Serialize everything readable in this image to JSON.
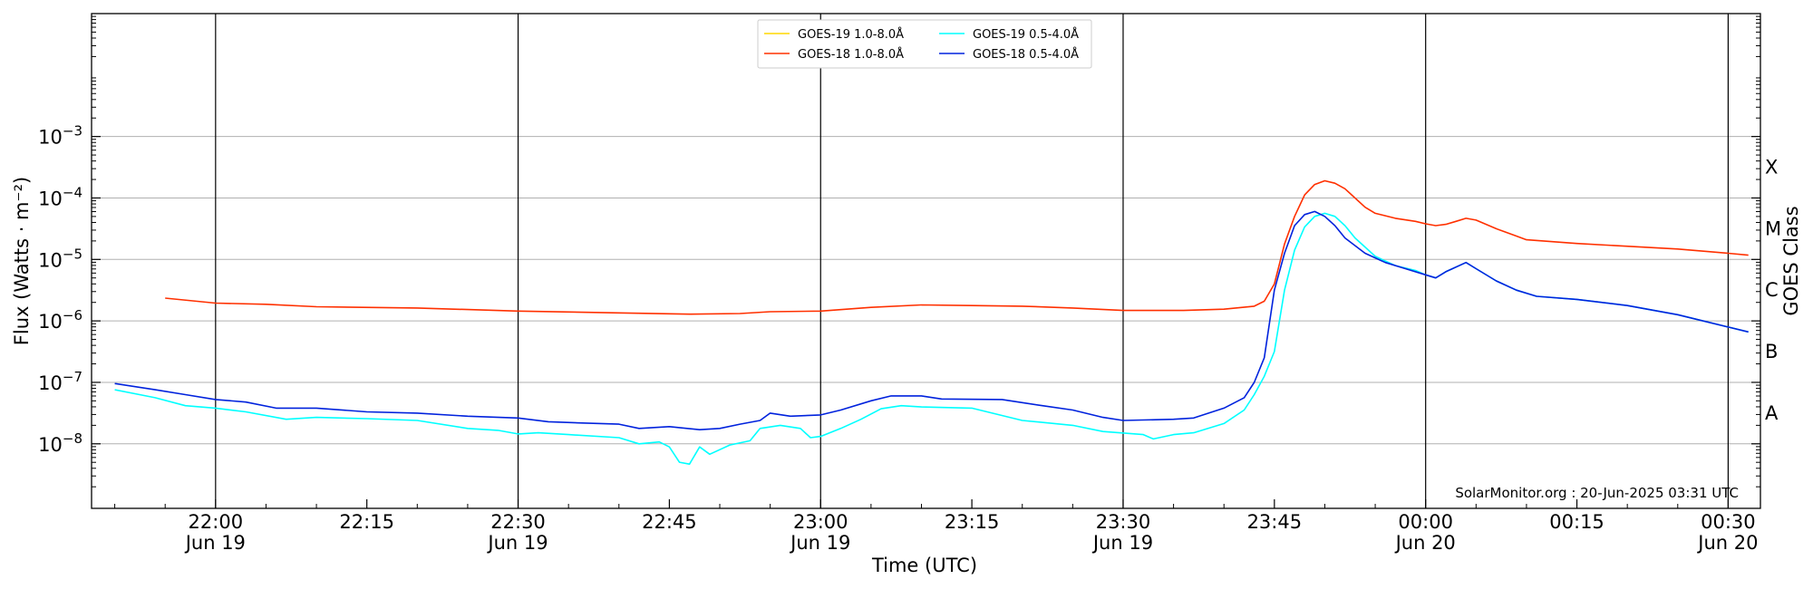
{
  "chart_data": {
    "type": "line",
    "xlabel": "Time (UTC)",
    "ylabel": "Flux (Watts · m⁻²)",
    "ylabel_right": "GOES Class",
    "ylim_log10": [
      -9.0,
      -1.0
    ],
    "y_scale": "log",
    "grid": "horizontal at each decade",
    "x_range_minutes": [
      -12,
      31
    ],
    "x_ticks": [
      {
        "minute": 0,
        "time": "22:00",
        "date": "Jun 19",
        "vline": true
      },
      {
        "minute": 15,
        "time": "22:15",
        "date": "",
        "vline": false
      },
      {
        "minute": 30,
        "time": "22:30",
        "date": "Jun 19",
        "vline": true
      },
      {
        "minute": 45,
        "time": "22:45",
        "date": "",
        "vline": false
      },
      {
        "minute": 60,
        "time": "23:00",
        "date": "Jun 19",
        "vline": true
      },
      {
        "minute": 75,
        "time": "23:15",
        "date": "",
        "vline": false
      },
      {
        "minute": 90,
        "time": "23:30",
        "date": "Jun 19",
        "vline": true
      },
      {
        "minute": 105,
        "time": "23:45",
        "date": "",
        "vline": false
      },
      {
        "minute": 120,
        "time": "00:00",
        "date": "Jun 20",
        "vline": true
      },
      {
        "minute": 135,
        "time": "00:15",
        "date": "",
        "vline": false
      },
      {
        "minute": 150,
        "time": "00:30",
        "date": "Jun 20",
        "vline": true
      }
    ],
    "y_ticks": [
      {
        "exp": -8,
        "base": "10",
        "sup": "−8"
      },
      {
        "exp": -7,
        "base": "10",
        "sup": "−7"
      },
      {
        "exp": -6,
        "base": "10",
        "sup": "−6"
      },
      {
        "exp": -5,
        "base": "10",
        "sup": "−5"
      },
      {
        "exp": -4,
        "base": "10",
        "sup": "−4"
      },
      {
        "exp": -3,
        "base": "10",
        "sup": "−3"
      }
    ],
    "class_labels": [
      {
        "label": "A",
        "exp": -7.5
      },
      {
        "label": "B",
        "exp": -6.5
      },
      {
        "label": "C",
        "exp": -5.5
      },
      {
        "label": "M",
        "exp": -4.5
      },
      {
        "label": "X",
        "exp": -3.5
      }
    ],
    "series": [
      {
        "name": "GOES-19 1.0-8.0Å",
        "color": "#ffd700",
        "points": []
      },
      {
        "name": "GOES-18 1.0-8.0Å",
        "color": "#ff3000",
        "points": [
          [
            -13,
            -5.56
          ],
          [
            -5,
            -5.63
          ],
          [
            0,
            -5.71
          ],
          [
            5,
            -5.73
          ],
          [
            10,
            -5.77
          ],
          [
            20,
            -5.79
          ],
          [
            30,
            -5.84
          ],
          [
            40,
            -5.87
          ],
          [
            47,
            -5.89
          ],
          [
            52,
            -5.88
          ],
          [
            55,
            -5.85
          ],
          [
            60,
            -5.84
          ],
          [
            65,
            -5.78
          ],
          [
            70,
            -5.74
          ],
          [
            75,
            -5.75
          ],
          [
            80,
            -5.76
          ],
          [
            85,
            -5.79
          ],
          [
            90,
            -5.83
          ],
          [
            96,
            -5.83
          ],
          [
            100,
            -5.81
          ],
          [
            103,
            -5.76
          ],
          [
            104,
            -5.68
          ],
          [
            105,
            -5.4
          ],
          [
            106,
            -4.75
          ],
          [
            107,
            -4.3
          ],
          [
            108,
            -3.95
          ],
          [
            109,
            -3.78
          ],
          [
            110,
            -3.72
          ],
          [
            111,
            -3.76
          ],
          [
            112,
            -3.85
          ],
          [
            113,
            -4.0
          ],
          [
            114,
            -4.15
          ],
          [
            115,
            -4.25
          ],
          [
            117,
            -4.33
          ],
          [
            119,
            -4.38
          ],
          [
            120,
            -4.42
          ],
          [
            121,
            -4.45
          ],
          [
            122,
            -4.43
          ],
          [
            123,
            -4.38
          ],
          [
            124,
            -4.33
          ],
          [
            125,
            -4.36
          ],
          [
            127,
            -4.5
          ],
          [
            129,
            -4.62
          ],
          [
            130,
            -4.68
          ],
          [
            135,
            -4.74
          ],
          [
            145,
            -4.83
          ],
          [
            150,
            -4.9
          ],
          [
            152,
            -4.93
          ]
        ]
      },
      {
        "name": "GOES-19 0.5-4.0Å",
        "color": "#00ffff",
        "points": [
          [
            -13,
            -7.03
          ],
          [
            -10,
            -7.12
          ],
          [
            -6,
            -7.25
          ],
          [
            -3,
            -7.38
          ],
          [
            0,
            -7.42
          ],
          [
            3,
            -7.48
          ],
          [
            7,
            -7.6
          ],
          [
            10,
            -7.57
          ],
          [
            15,
            -7.59
          ],
          [
            20,
            -7.62
          ],
          [
            25,
            -7.75
          ],
          [
            28,
            -7.78
          ],
          [
            30,
            -7.84
          ],
          [
            32,
            -7.82
          ],
          [
            35,
            -7.85
          ],
          [
            40,
            -7.9
          ],
          [
            42,
            -8.0
          ],
          [
            44,
            -7.97
          ],
          [
            45,
            -8.05
          ],
          [
            46,
            -8.3
          ],
          [
            47,
            -8.33
          ],
          [
            48,
            -8.05
          ],
          [
            49,
            -8.17
          ],
          [
            51,
            -8.02
          ],
          [
            53,
            -7.95
          ],
          [
            54,
            -7.75
          ],
          [
            56,
            -7.7
          ],
          [
            58,
            -7.75
          ],
          [
            59,
            -7.9
          ],
          [
            60,
            -7.88
          ],
          [
            62,
            -7.75
          ],
          [
            64,
            -7.6
          ],
          [
            66,
            -7.43
          ],
          [
            68,
            -7.38
          ],
          [
            70,
            -7.4
          ],
          [
            75,
            -7.42
          ],
          [
            80,
            -7.62
          ],
          [
            85,
            -7.7
          ],
          [
            88,
            -7.8
          ],
          [
            92,
            -7.85
          ],
          [
            93,
            -7.92
          ],
          [
            95,
            -7.85
          ],
          [
            97,
            -7.82
          ],
          [
            100,
            -7.67
          ],
          [
            102,
            -7.45
          ],
          [
            103,
            -7.2
          ],
          [
            104,
            -6.9
          ],
          [
            105,
            -6.5
          ],
          [
            106,
            -5.5
          ],
          [
            107,
            -4.85
          ],
          [
            108,
            -4.47
          ],
          [
            109,
            -4.3
          ],
          [
            110,
            -4.25
          ],
          [
            111,
            -4.3
          ],
          [
            112,
            -4.45
          ],
          [
            113,
            -4.65
          ],
          [
            115,
            -4.95
          ],
          [
            117,
            -5.1
          ],
          [
            119,
            -5.18
          ],
          [
            120,
            -5.25
          ],
          [
            121,
            -5.3
          ],
          [
            122,
            -5.2
          ],
          [
            124,
            -5.05
          ],
          [
            125,
            -5.15
          ],
          [
            127,
            -5.35
          ],
          [
            129,
            -5.5
          ],
          [
            131,
            -5.6
          ],
          [
            135,
            -5.65
          ],
          [
            140,
            -5.75
          ],
          [
            145,
            -5.9
          ],
          [
            150,
            -6.1
          ],
          [
            152,
            -6.18
          ]
        ]
      },
      {
        "name": "GOES-18 0.5-4.0Å",
        "color": "#0022dd",
        "points": [
          [
            -13,
            -6.95
          ],
          [
            -10,
            -7.02
          ],
          [
            -6,
            -7.12
          ],
          [
            -3,
            -7.2
          ],
          [
            0,
            -7.28
          ],
          [
            3,
            -7.32
          ],
          [
            6,
            -7.42
          ],
          [
            10,
            -7.42
          ],
          [
            15,
            -7.48
          ],
          [
            20,
            -7.5
          ],
          [
            25,
            -7.55
          ],
          [
            30,
            -7.58
          ],
          [
            33,
            -7.64
          ],
          [
            36,
            -7.66
          ],
          [
            40,
            -7.68
          ],
          [
            42,
            -7.75
          ],
          [
            45,
            -7.72
          ],
          [
            48,
            -7.77
          ],
          [
            50,
            -7.75
          ],
          [
            52,
            -7.68
          ],
          [
            54,
            -7.62
          ],
          [
            55,
            -7.5
          ],
          [
            57,
            -7.55
          ],
          [
            60,
            -7.53
          ],
          [
            62,
            -7.45
          ],
          [
            65,
            -7.3
          ],
          [
            67,
            -7.22
          ],
          [
            70,
            -7.22
          ],
          [
            72,
            -7.27
          ],
          [
            78,
            -7.28
          ],
          [
            82,
            -7.38
          ],
          [
            85,
            -7.45
          ],
          [
            88,
            -7.57
          ],
          [
            90,
            -7.62
          ],
          [
            95,
            -7.6
          ],
          [
            97,
            -7.58
          ],
          [
            100,
            -7.42
          ],
          [
            102,
            -7.25
          ],
          [
            103,
            -7.0
          ],
          [
            104,
            -6.6
          ],
          [
            105,
            -5.5
          ],
          [
            106,
            -4.9
          ],
          [
            107,
            -4.45
          ],
          [
            108,
            -4.27
          ],
          [
            109,
            -4.22
          ],
          [
            110,
            -4.3
          ],
          [
            111,
            -4.45
          ],
          [
            112,
            -4.65
          ],
          [
            114,
            -4.9
          ],
          [
            116,
            -5.05
          ],
          [
            118,
            -5.15
          ],
          [
            120,
            -5.25
          ],
          [
            121,
            -5.3
          ],
          [
            122,
            -5.2
          ],
          [
            124,
            -5.05
          ],
          [
            125,
            -5.15
          ],
          [
            127,
            -5.35
          ],
          [
            129,
            -5.5
          ],
          [
            131,
            -5.6
          ],
          [
            135,
            -5.65
          ],
          [
            140,
            -5.75
          ],
          [
            145,
            -5.9
          ],
          [
            150,
            -6.1
          ],
          [
            152,
            -6.18
          ]
        ]
      }
    ],
    "footer": "SolarMonitor.org : 20-Jun-2025 03:31 UTC"
  }
}
